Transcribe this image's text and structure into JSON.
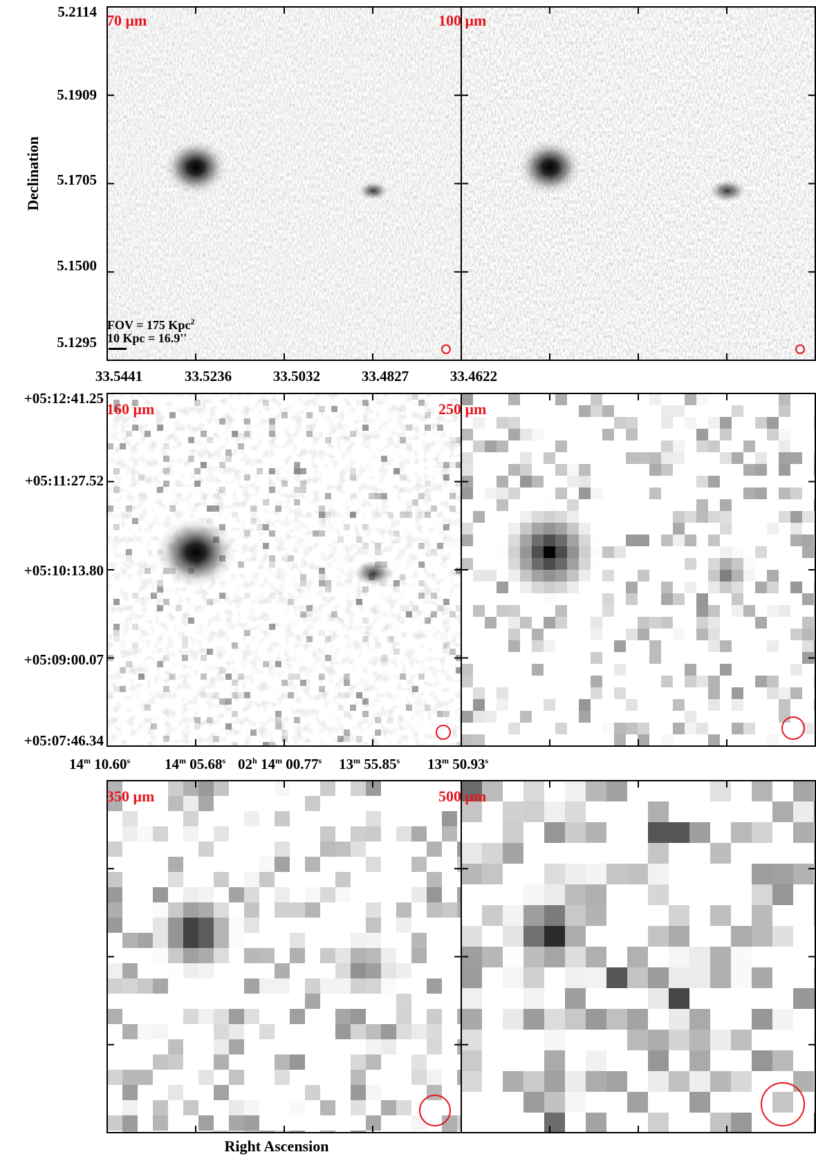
{
  "panels": [
    {
      "label": "70 μm",
      "row": 0,
      "col": 0,
      "beam": 6
    },
    {
      "label": "100 μm",
      "row": 0,
      "col": 1,
      "beam": 6
    },
    {
      "label": "160 μm",
      "row": 1,
      "col": 0,
      "beam": 10
    },
    {
      "label": "250 μm",
      "row": 1,
      "col": 1,
      "beam": 16
    },
    {
      "label": "350 μm",
      "row": 2,
      "col": 0,
      "beam": 22
    },
    {
      "label": "500 μm",
      "row": 2,
      "col": 1,
      "beam": 31
    }
  ],
  "row1": {
    "y_ticks": [
      "5.2114",
      "5.1909",
      "5.1705",
      "5.1500",
      "5.1295"
    ],
    "x_ticks": [
      "33.5441",
      "33.5236",
      "33.5032",
      "33.4827",
      "33.4622"
    ],
    "ylabel": "Declination"
  },
  "row2": {
    "y_ticks": [
      "+05:12:41.25",
      "+05:11:27.52",
      "+05:10:13.80",
      "+05:09:00.07",
      "+05:07:46.34"
    ],
    "x_ticks": [
      {
        "pre": "14",
        "m": "m",
        "mid": " 10.60",
        "s": "s"
      },
      {
        "pre": "14",
        "m": "m",
        "mid": " 05.68",
        "s": "s"
      },
      {
        "pre": "02",
        "h": "h",
        "pre2": " 14",
        "m": "m",
        "mid": " 00.77",
        "s": "s"
      },
      {
        "pre": "13",
        "m": "m",
        "mid": " 55.85",
        "s": "s"
      },
      {
        "pre": "13",
        "m": "m",
        "mid": " 50.93",
        "s": "s"
      }
    ]
  },
  "fov": {
    "line1": "FOV = 175 Kpc",
    "line1_sup": "2",
    "line2": "10 Kpc = 16.9''"
  },
  "xlabel": "Right Ascension",
  "colors": {
    "label": "#e8141c",
    "beam": "#e8141c",
    "frame": "#000000"
  }
}
